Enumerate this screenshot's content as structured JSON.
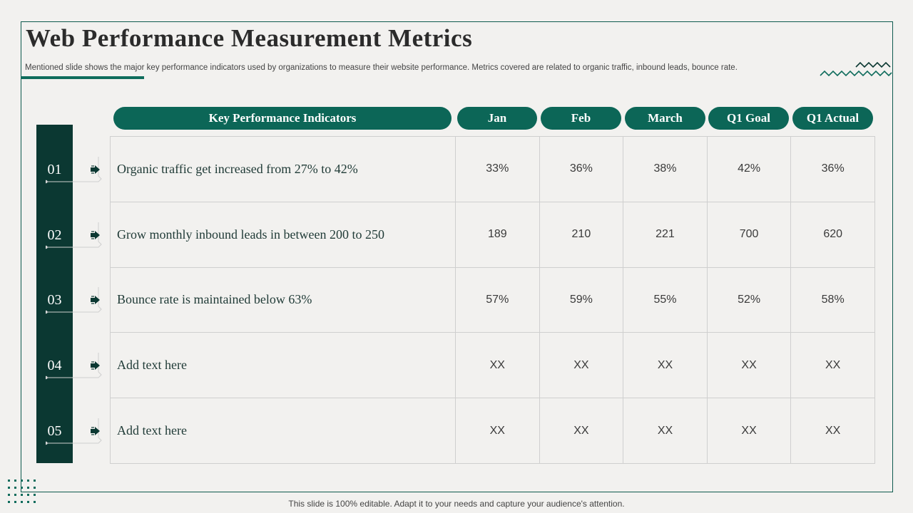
{
  "title": "Web Performance Measurement Metrics",
  "subtitle": "Mentioned slide shows the major key performance indicators used by organizations to measure their website performance. Metrics covered are related to organic traffic, inbound leads, bounce rate.",
  "headers": {
    "kpi": "Key Performance Indicators",
    "jan": "Jan",
    "feb": "Feb",
    "march": "March",
    "q1_goal": "Q1 Goal",
    "q1_actual": "Q1 Actual"
  },
  "rows": [
    {
      "num": "01",
      "kpi": "Organic traffic get increased from 27% to 42%",
      "jan": "33%",
      "feb": "36%",
      "march": "38%",
      "q1_goal": "42%",
      "q1_actual": "36%"
    },
    {
      "num": "02",
      "kpi": "Grow monthly inbound leads in between 200 to 250",
      "jan": "189",
      "feb": "210",
      "march": "221",
      "q1_goal": "700",
      "q1_actual": "620"
    },
    {
      "num": "03",
      "kpi": "Bounce rate is maintained  below 63%",
      "jan": "57%",
      "feb": "59%",
      "march": "55%",
      "q1_goal": "52%",
      "q1_actual": "58%"
    },
    {
      "num": "04",
      "kpi": "Add text here",
      "jan": "XX",
      "feb": "XX",
      "march": "XX",
      "q1_goal": "XX",
      "q1_actual": "XX"
    },
    {
      "num": "05",
      "kpi": "Add text here",
      "jan": "XX",
      "feb": "XX",
      "march": "XX",
      "q1_goal": "XX",
      "q1_actual": "XX"
    }
  ],
  "footer": "This slide is 100% editable. Adapt it to your needs and capture your audience's attention.",
  "colors": {
    "accent": "#0c6657",
    "dark_band": "#0b3832",
    "background": "#f2f1ef"
  }
}
